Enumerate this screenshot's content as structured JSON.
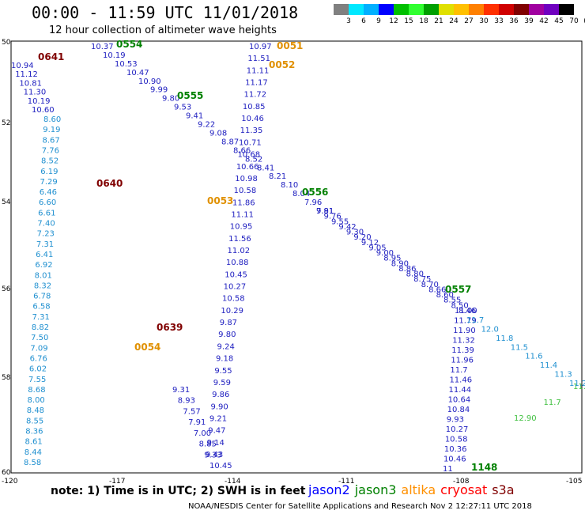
{
  "header": {
    "title": "00:00 - 11:59 UTC 11/01/2018",
    "subtitle": "12 hour collection of altimeter wave heights"
  },
  "colorbar": {
    "colors": [
      "#808080",
      "#00e8ff",
      "#00b0ff",
      "#0000ff",
      "#00c000",
      "#30ff30",
      "#00a000",
      "#e0e000",
      "#ffc000",
      "#ff8000",
      "#ff3000",
      "#d00000",
      "#800000",
      "#a000a0",
      "#7000c0",
      "#000000"
    ],
    "labels": [
      "3",
      "6",
      "9",
      "12",
      "15",
      "18",
      "21",
      "24",
      "27",
      "30",
      "33",
      "36",
      "39",
      "42",
      "45",
      "70",
      "(ft)"
    ]
  },
  "axes": {
    "x_ticks": [
      "-120",
      "-117",
      "-114",
      "-111",
      "-108",
      "-105"
    ],
    "y_ticks": [
      "50",
      "52",
      "54",
      "56",
      "58",
      "60"
    ]
  },
  "tracks": [
    {
      "sat": "jason2",
      "color": "#2020c0",
      "values": [
        "10.94",
        "11.12",
        "10.81",
        "11.30",
        "10.19",
        "10.60"
      ]
    },
    {
      "sat": "jason3-diag",
      "color": "#2020c0",
      "values": [
        "10.37",
        "10.19",
        "10.53",
        "10.47",
        "10.90",
        "9.99",
        "9.80",
        "9.53",
        "9.41",
        "9.22",
        "9.08",
        "8.87",
        "8.66",
        "8.52",
        "8.41",
        "8.21",
        "8.10",
        "8.04",
        "7.96",
        "7.81"
      ]
    },
    {
      "sat": "jason2-mid",
      "color": "#2020c0",
      "values": [
        "10.97",
        "11.51",
        "11.11",
        "11.17",
        "11.72",
        "10.85",
        "10.46",
        "11.35",
        "10.71",
        "10.68",
        "10.66",
        "10.98",
        "10.58",
        "11.86",
        "11.11",
        "10.95",
        "11.56",
        "11.02",
        "10.88",
        "10.45",
        "10.27",
        "10.58",
        "10.29",
        "9.87",
        "9.80",
        "9.24",
        "9.18",
        "9.55",
        "9.59",
        "9.86",
        "9.90",
        "9.21",
        "9.47",
        "9.14",
        "9.43"
      ]
    },
    {
      "sat": "jason3",
      "color": "#2090d0",
      "values": [
        "8.60",
        "9.19",
        "8.67",
        "7.76",
        "8.52",
        "6.19",
        "7.29",
        "6.46",
        "6.60",
        "6.61",
        "7.40",
        "7.23",
        "7.31",
        "6.41",
        "6.92",
        "8.01",
        "8.32",
        "6.78",
        "6.58",
        "7.31",
        "8.82",
        "7.50",
        "7.09",
        "6.76",
        "6.02",
        "7.55",
        "8.68",
        "8.00",
        "8.48",
        "8.55",
        "8.36",
        "8.61",
        "8.44",
        "8.58"
      ]
    },
    {
      "sat": "jason3-south",
      "color": "#2020c0",
      "values": [
        "9.31",
        "8.93",
        "7.57",
        "7.91",
        "7.00",
        "8.85",
        "9.33",
        "10.45"
      ]
    },
    {
      "sat": "jason2-east",
      "color": "#2020c0",
      "values": [
        "11.00",
        "11.79",
        "11.90",
        "11.32",
        "11.39",
        "11.96",
        "11.7",
        "11.46",
        "11.44",
        "10.64",
        "10.84",
        "9.93",
        "10.27",
        "10.58",
        "10.36",
        "10.46",
        "11"
      ]
    },
    {
      "sat": "jason3-east",
      "color": "#40c040",
      "values": [
        "12.90",
        "11.7",
        "11.3"
      ]
    }
  ],
  "pass_labels": [
    {
      "text": "0641",
      "color": "#800000"
    },
    {
      "text": "0554",
      "color": "#008000"
    },
    {
      "text": "0051",
      "color": "#e09000"
    },
    {
      "text": "0052",
      "color": "#e09000"
    },
    {
      "text": "0555",
      "color": "#008000"
    },
    {
      "text": "0640",
      "color": "#800000"
    },
    {
      "text": "0053",
      "color": "#e09000"
    },
    {
      "text": "0556",
      "color": "#008000"
    },
    {
      "text": "0557",
      "color": "#008000"
    },
    {
      "text": "0639",
      "color": "#800000"
    },
    {
      "text": "0054",
      "color": "#e09000"
    },
    {
      "text": "1148",
      "color": "#008000"
    }
  ],
  "footer": {
    "note": "note: 1) Time is in UTC; 2) SWH is in feet",
    "satellites": [
      {
        "name": "jason2",
        "color": "#0000ff"
      },
      {
        "name": "jason3",
        "color": "#008000"
      },
      {
        "name": "altika",
        "color": "#ff9000"
      },
      {
        "name": "cryosat",
        "color": "#ff0000"
      },
      {
        "name": "s3a",
        "color": "#800000"
      }
    ],
    "credit": "NOAA/NESDIS Center for Satellite Applications and Research   Nov  2 12:27:11 UTC 2018"
  }
}
